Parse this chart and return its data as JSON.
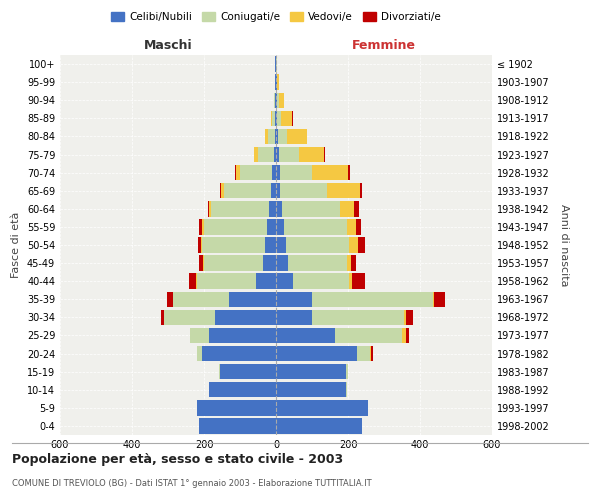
{
  "age_groups": [
    "0-4",
    "5-9",
    "10-14",
    "15-19",
    "20-24",
    "25-29",
    "30-34",
    "35-39",
    "40-44",
    "45-49",
    "50-54",
    "55-59",
    "60-64",
    "65-69",
    "70-74",
    "75-79",
    "80-84",
    "85-89",
    "90-94",
    "95-99",
    "100+"
  ],
  "birth_years": [
    "1998-2002",
    "1993-1997",
    "1988-1992",
    "1983-1987",
    "1978-1982",
    "1973-1977",
    "1968-1972",
    "1963-1967",
    "1958-1962",
    "1953-1957",
    "1948-1952",
    "1943-1947",
    "1938-1942",
    "1933-1937",
    "1928-1932",
    "1923-1927",
    "1918-1922",
    "1913-1917",
    "1908-1912",
    "1903-1907",
    "≤ 1902"
  ],
  "maschi": {
    "celibi": [
      215,
      220,
      185,
      155,
      205,
      185,
      170,
      130,
      55,
      35,
      30,
      25,
      20,
      15,
      10,
      5,
      4,
      3,
      2,
      2,
      2
    ],
    "coniugati": [
      0,
      0,
      1,
      3,
      15,
      55,
      140,
      155,
      165,
      165,
      175,
      175,
      160,
      130,
      90,
      45,
      18,
      8,
      3,
      1,
      0
    ],
    "vedovi": [
      0,
      0,
      0,
      0,
      0,
      0,
      0,
      0,
      1,
      2,
      3,
      5,
      5,
      8,
      12,
      10,
      8,
      3,
      1,
      0,
      0
    ],
    "divorziati": [
      0,
      0,
      0,
      0,
      0,
      0,
      10,
      18,
      20,
      12,
      10,
      8,
      5,
      3,
      2,
      2,
      1,
      0,
      0,
      0,
      0
    ]
  },
  "femmine": {
    "nubili": [
      240,
      255,
      195,
      195,
      225,
      165,
      100,
      100,
      48,
      32,
      28,
      22,
      18,
      12,
      10,
      8,
      5,
      3,
      2,
      2,
      1
    ],
    "coniugate": [
      0,
      0,
      2,
      5,
      35,
      185,
      255,
      335,
      155,
      165,
      175,
      175,
      160,
      130,
      90,
      55,
      25,
      12,
      5,
      2,
      1
    ],
    "vedove": [
      0,
      0,
      0,
      0,
      5,
      10,
      5,
      5,
      8,
      10,
      25,
      25,
      40,
      90,
      100,
      70,
      55,
      30,
      15,
      5,
      2
    ],
    "divorziate": [
      0,
      0,
      0,
      0,
      5,
      10,
      20,
      30,
      35,
      15,
      18,
      15,
      12,
      8,
      5,
      3,
      2,
      1,
      0,
      0,
      0
    ]
  },
  "colors": {
    "celibi": "#4472C4",
    "coniugati": "#C5D9A8",
    "vedovi": "#F5C842",
    "divorziati": "#C00000"
  },
  "xlim": 600,
  "title": "Popolazione per età, sesso e stato civile - 2003",
  "subtitle": "COMUNE DI TREVIOLO (BG) - Dati ISTAT 1° gennaio 2003 - Elaborazione TUTTITALIA.IT",
  "ylabel_left": "Fasce di età",
  "ylabel_right": "Anni di nascita",
  "legend_labels": [
    "Celibi/Nubili",
    "Coniugati/e",
    "Vedovi/e",
    "Divorziati/e"
  ],
  "maschi_label": "Maschi",
  "femmine_label": "Femmine",
  "bg_color": "#F0F0EC"
}
